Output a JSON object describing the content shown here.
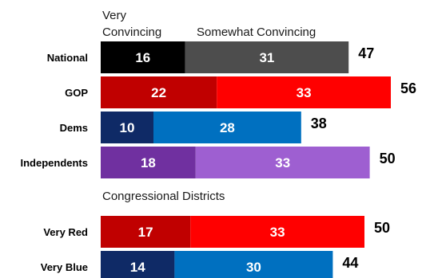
{
  "chart_data": {
    "type": "bar",
    "orientation": "horizontal",
    "stacked": true,
    "legend": {
      "very_line1": "Very",
      "very_line2": "Convincing",
      "somewhat": "Somewhat Convincing"
    },
    "section_label": "Congressional Districts",
    "rows": [
      {
        "label": "National",
        "very": 16,
        "somewhat": 31,
        "total": 47,
        "colors": [
          "#000000",
          "#4d4d4d"
        ]
      },
      {
        "label": "GOP",
        "very": 22,
        "somewhat": 33,
        "total": 56,
        "colors": [
          "#c00000",
          "#ff0000"
        ]
      },
      {
        "label": "Dems",
        "very": 10,
        "somewhat": 28,
        "total": 38,
        "colors": [
          "#0f2a66",
          "#0070c0"
        ]
      },
      {
        "label": "Independents",
        "very": 18,
        "somewhat": 33,
        "total": 50,
        "colors": [
          "#7030a0",
          "#9e5fd1"
        ]
      },
      {
        "label": "Very Red",
        "very": 17,
        "somewhat": 33,
        "total": 50,
        "colors": [
          "#c00000",
          "#ff0000"
        ]
      },
      {
        "label": "Very Blue",
        "very": 14,
        "somewhat": 30,
        "total": 44,
        "colors": [
          "#0f2a66",
          "#0070c0"
        ]
      }
    ]
  }
}
